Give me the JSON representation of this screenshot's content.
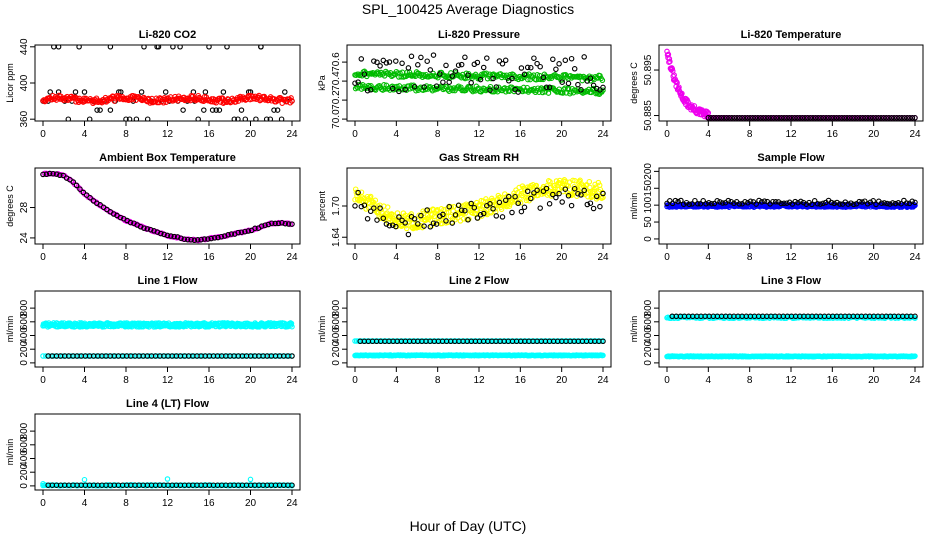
{
  "figure": {
    "title": "SPL_100425  Average Diagnostics",
    "xlabel": "Hour of Day (UTC)"
  },
  "chart_data": [
    {
      "type": "scatter",
      "title": "Li-820 CO2",
      "ylabel": "Licor ppm",
      "xlim": [
        0,
        24
      ],
      "xticks": [
        0,
        4,
        8,
        12,
        16,
        20,
        24
      ],
      "ylim": [
        358,
        442
      ],
      "yticks": [
        360,
        400,
        440
      ],
      "series": [
        {
          "name": "",
          "color": "#000000",
          "gen": {
            "kind": "levels",
            "levels": [
              440,
              380,
              360,
              390,
              370
            ],
            "n": 70,
            "seed": 11
          }
        },
        {
          "name": "",
          "color": "#ff0000",
          "gen": {
            "kind": "band",
            "base": 382,
            "amp": 1.5,
            "noise": 3,
            "n": 280,
            "seed": 12
          }
        }
      ]
    },
    {
      "type": "scatter",
      "title": "Li-820 Pressure",
      "ylabel": "kPa",
      "xlim": [
        0,
        24
      ],
      "xticks": [
        0,
        4,
        8,
        12,
        16,
        20,
        24
      ],
      "ylim": [
        69.98,
        70.78
      ],
      "yticks": [
        70.0,
        70.2,
        70.4,
        70.6
      ],
      "series": [
        {
          "name": "",
          "color": "#00bb00",
          "gen": {
            "kind": "twoband",
            "base1": 70.48,
            "base2": 70.34,
            "drift": -0.05,
            "noise": 0.03,
            "n": 420,
            "seed": 21
          }
        },
        {
          "name": "",
          "color": "#000000",
          "gen": {
            "kind": "sparse",
            "base": 70.48,
            "amp": 0.2,
            "n": 80,
            "seed": 22
          }
        }
      ]
    },
    {
      "type": "scatter",
      "title": "Li-820 Temperature",
      "ylabel": "degrees C",
      "xlim": [
        0,
        24
      ],
      "xticks": [
        0,
        4,
        8,
        12,
        16,
        20,
        24
      ],
      "ylim": [
        50.8838,
        50.9005
      ],
      "yticks": [
        50.885,
        50.895
      ],
      "series": [
        {
          "name": "",
          "color": "#ee00ee",
          "gen": {
            "kind": "decay",
            "start": 50.8995,
            "end": 50.8845,
            "tau": 3.8,
            "noise": 0.0008,
            "n": 130,
            "seed": 31
          }
        },
        {
          "name": "",
          "color": "#000000",
          "gen": {
            "kind": "flatline",
            "value": 50.8845,
            "from": 4,
            "n": 80
          }
        }
      ]
    },
    {
      "type": "scatter",
      "title": "Ambient Box Temperature",
      "ylabel": "degrees C",
      "xlim": [
        0,
        24
      ],
      "xticks": [
        0,
        4,
        8,
        12,
        16,
        20,
        24
      ],
      "ylim": [
        23.2,
        33.2
      ],
      "yticks": [
        24,
        28
      ],
      "series": [
        {
          "name": "",
          "color": "#ee00ee",
          "gen": {
            "kind": "curve",
            "pts": [
              [
                0,
                32.4
              ],
              [
                1,
                32.5
              ],
              [
                2,
                32.2
              ],
              [
                3,
                31.2
              ],
              [
                4,
                29.8
              ],
              [
                6,
                27.8
              ],
              [
                8,
                26.3
              ],
              [
                10,
                25.2
              ],
              [
                12,
                24.3
              ],
              [
                14,
                23.8
              ],
              [
                15,
                23.7
              ],
              [
                16,
                23.9
              ],
              [
                18,
                24.4
              ],
              [
                20,
                25.0
              ],
              [
                22,
                25.9
              ],
              [
                23,
                26.0
              ],
              [
                24,
                25.8
              ]
            ],
            "n": 150,
            "seed": 41
          }
        },
        {
          "name": "",
          "color": "#000000",
          "gen": {
            "kind": "curve",
            "pts": [
              [
                0,
                32.4
              ],
              [
                1,
                32.5
              ],
              [
                2,
                32.2
              ],
              [
                3,
                31.2
              ],
              [
                4,
                29.8
              ],
              [
                6,
                27.8
              ],
              [
                8,
                26.3
              ],
              [
                10,
                25.2
              ],
              [
                12,
                24.3
              ],
              [
                14,
                23.8
              ],
              [
                15,
                23.7
              ],
              [
                16,
                23.9
              ],
              [
                18,
                24.4
              ],
              [
                20,
                25.0
              ],
              [
                22,
                25.9
              ],
              [
                23,
                26.0
              ],
              [
                24,
                25.8
              ]
            ],
            "n": 75,
            "seed": 42
          }
        }
      ]
    },
    {
      "type": "scatter",
      "title": "Gas Stream RH",
      "ylabel": "percent",
      "xlim": [
        0,
        24
      ],
      "xticks": [
        0,
        4,
        8,
        12,
        16,
        20,
        24
      ],
      "ylim": [
        1.627,
        1.773
      ],
      "yticks": [
        1.64,
        1.7
      ],
      "series": [
        {
          "name": "",
          "color": "#ffff00",
          "gen": {
            "kind": "curvenoise",
            "pts": [
              [
                0,
                1.72
              ],
              [
                3,
                1.685
              ],
              [
                5,
                1.668
              ],
              [
                8,
                1.68
              ],
              [
                12,
                1.693
              ],
              [
                16,
                1.722
              ],
              [
                20,
                1.738
              ],
              [
                24,
                1.728
              ]
            ],
            "noise": 0.016,
            "n": 380,
            "seed": 51
          }
        },
        {
          "name": "",
          "color": "#000000",
          "gen": {
            "kind": "curvenoise",
            "pts": [
              [
                0,
                1.71
              ],
              [
                3,
                1.67
              ],
              [
                5,
                1.66
              ],
              [
                8,
                1.68
              ],
              [
                12,
                1.69
              ],
              [
                16,
                1.705
              ],
              [
                20,
                1.725
              ],
              [
                24,
                1.705
              ]
            ],
            "noise": 0.02,
            "n": 80,
            "seed": 52
          }
        }
      ]
    },
    {
      "type": "scatter",
      "title": "Sample Flow",
      "ylabel": "ml/min",
      "xlim": [
        0,
        24
      ],
      "xticks": [
        0,
        4,
        8,
        12,
        16,
        20,
        24
      ],
      "ylim": [
        -15,
        210
      ],
      "yticks": [
        0,
        50,
        100,
        150,
        200
      ],
      "series": [
        {
          "name": "",
          "color": "#0000ff",
          "gen": {
            "kind": "band",
            "base": 98,
            "amp": 0,
            "noise": 4,
            "n": 420,
            "seed": 61
          }
        },
        {
          "name": "",
          "color": "#000000",
          "gen": {
            "kind": "band",
            "base": 108,
            "amp": 0,
            "noise": 6,
            "n": 90,
            "seed": 62
          }
        }
      ]
    },
    {
      "type": "scatter",
      "title": "Line 1 Flow",
      "ylabel": "ml/min",
      "xlim": [
        0,
        24
      ],
      "xticks": [
        0,
        4,
        8,
        12,
        16,
        20,
        24
      ],
      "ylim": [
        -60,
        1050
      ],
      "yticks": [
        0,
        200,
        400,
        600,
        800
      ],
      "series": [
        {
          "name": "",
          "color": "#00ffff",
          "gen": {
            "kind": "band",
            "base": 555,
            "amp": 0,
            "noise": 30,
            "n": 520,
            "seed": 71
          }
        },
        {
          "name": "",
          "color": "#00ffff",
          "gen": {
            "kind": "flatline",
            "value": 100,
            "from": 0,
            "n": 90
          }
        },
        {
          "name": "",
          "color": "#000000",
          "gen": {
            "kind": "flatline",
            "value": 100,
            "from": 0.5,
            "n": 60
          }
        }
      ]
    },
    {
      "type": "scatter",
      "title": "Line 2 Flow",
      "ylabel": "ml/min",
      "xlim": [
        0,
        24
      ],
      "xticks": [
        0,
        4,
        8,
        12,
        16,
        20,
        24
      ],
      "ylim": [
        -60,
        1050
      ],
      "yticks": [
        0,
        200,
        400,
        600,
        800
      ],
      "series": [
        {
          "name": "",
          "color": "#00ffff",
          "gen": {
            "kind": "flatline",
            "value": 320,
            "from": 0,
            "n": 160
          }
        },
        {
          "name": "",
          "color": "#000000",
          "gen": {
            "kind": "flatline",
            "value": 315,
            "from": 0.5,
            "n": 60
          }
        },
        {
          "name": "",
          "color": "#00ffff",
          "gen": {
            "kind": "band",
            "base": 110,
            "amp": 0,
            "noise": 6,
            "n": 300,
            "seed": 81
          }
        }
      ]
    },
    {
      "type": "scatter",
      "title": "Line 3 Flow",
      "ylabel": "ml/min",
      "xlim": [
        0,
        24
      ],
      "xticks": [
        0,
        4,
        8,
        12,
        16,
        20,
        24
      ],
      "ylim": [
        -60,
        1050
      ],
      "yticks": [
        0,
        200,
        400,
        600,
        800
      ],
      "series": [
        {
          "name": "",
          "color": "#00ffff",
          "gen": {
            "kind": "band",
            "base": 665,
            "amp": 0,
            "noise": 14,
            "n": 240,
            "seed": 91
          }
        },
        {
          "name": "",
          "color": "#000000",
          "gen": {
            "kind": "flatline",
            "value": 680,
            "from": 0.5,
            "n": 60
          }
        },
        {
          "name": "",
          "color": "#00ffff",
          "gen": {
            "kind": "band",
            "base": 95,
            "amp": 0,
            "noise": 6,
            "n": 300,
            "seed": 92
          }
        }
      ]
    },
    {
      "type": "scatter",
      "title": "Line 4 (LT) Flow",
      "ylabel": "ml/min",
      "xlim": [
        0,
        24
      ],
      "xticks": [
        0,
        4,
        8,
        12,
        16,
        20,
        24
      ],
      "ylim": [
        -60,
        1050
      ],
      "yticks": [
        0,
        200,
        400,
        600,
        800
      ],
      "series": [
        {
          "name": "",
          "color": "#00ffff",
          "gen": {
            "kind": "band",
            "base": 8,
            "amp": 0,
            "noise": 6,
            "n": 200,
            "seed": 101
          }
        },
        {
          "name": "",
          "color": "#00ffff",
          "gen": {
            "kind": "points",
            "xs": [
              0,
              4,
              12,
              20
            ],
            "ys": [
              30,
              90,
              100,
              95
            ]
          }
        },
        {
          "name": "",
          "color": "#000000",
          "gen": {
            "kind": "flatline",
            "value": 10,
            "from": 0.5,
            "n": 60
          }
        }
      ]
    }
  ]
}
